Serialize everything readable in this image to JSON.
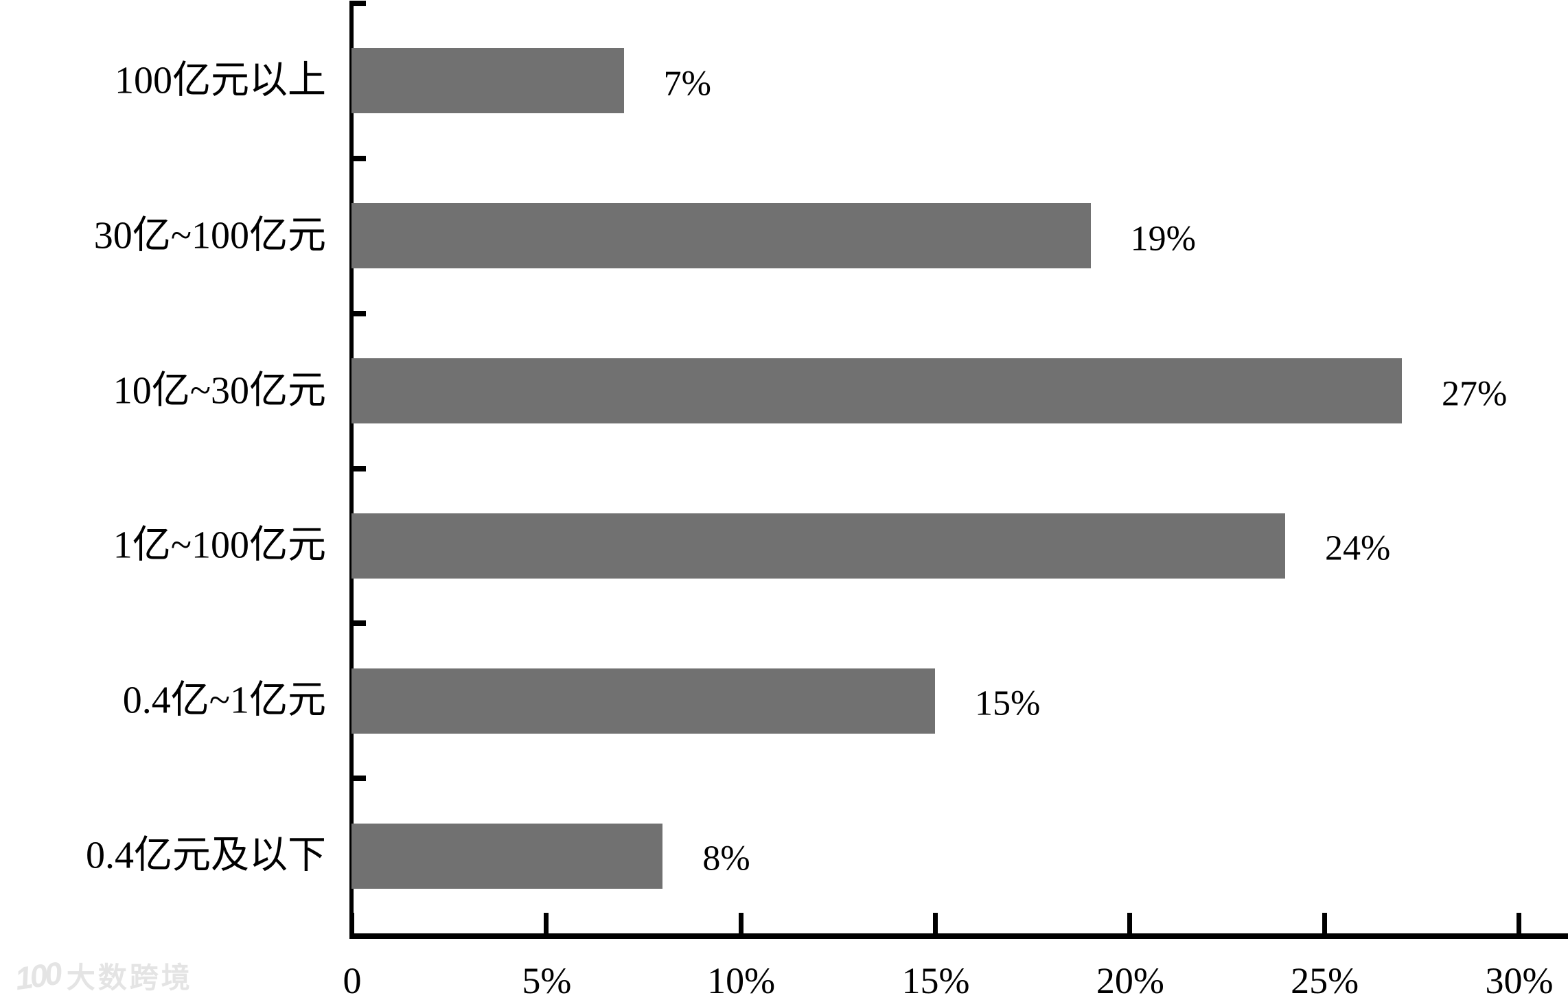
{
  "chart_data": {
    "type": "bar",
    "orientation": "horizontal",
    "title": "",
    "xlabel": "",
    "ylabel": "",
    "categories": [
      "100亿元以上",
      "30亿~100亿元",
      "10亿~30亿元",
      "1亿~100亿元",
      "0.4亿~1亿元",
      "0.4亿元及以下"
    ],
    "values": [
      7,
      19,
      27,
      24,
      15,
      8
    ],
    "value_labels": [
      "7%",
      "19%",
      "27%",
      "24%",
      "15%",
      "8%"
    ],
    "x_ticks": [
      {
        "value": 0,
        "label": "0"
      },
      {
        "value": 5,
        "label": "5%"
      },
      {
        "value": 10,
        "label": "10%"
      },
      {
        "value": 15,
        "label": "15%"
      },
      {
        "value": 20,
        "label": "20%"
      },
      {
        "value": 25,
        "label": "25%"
      },
      {
        "value": 30,
        "label": "30%"
      }
    ],
    "xlim": [
      0,
      30
    ],
    "grid": false,
    "legend": null,
    "bar_color": "#717171",
    "axis_color": "#000000",
    "label_color": "#000000"
  },
  "watermark": {
    "logo": "100",
    "text": "大数跨境",
    "color": "#e4e4e4"
  }
}
